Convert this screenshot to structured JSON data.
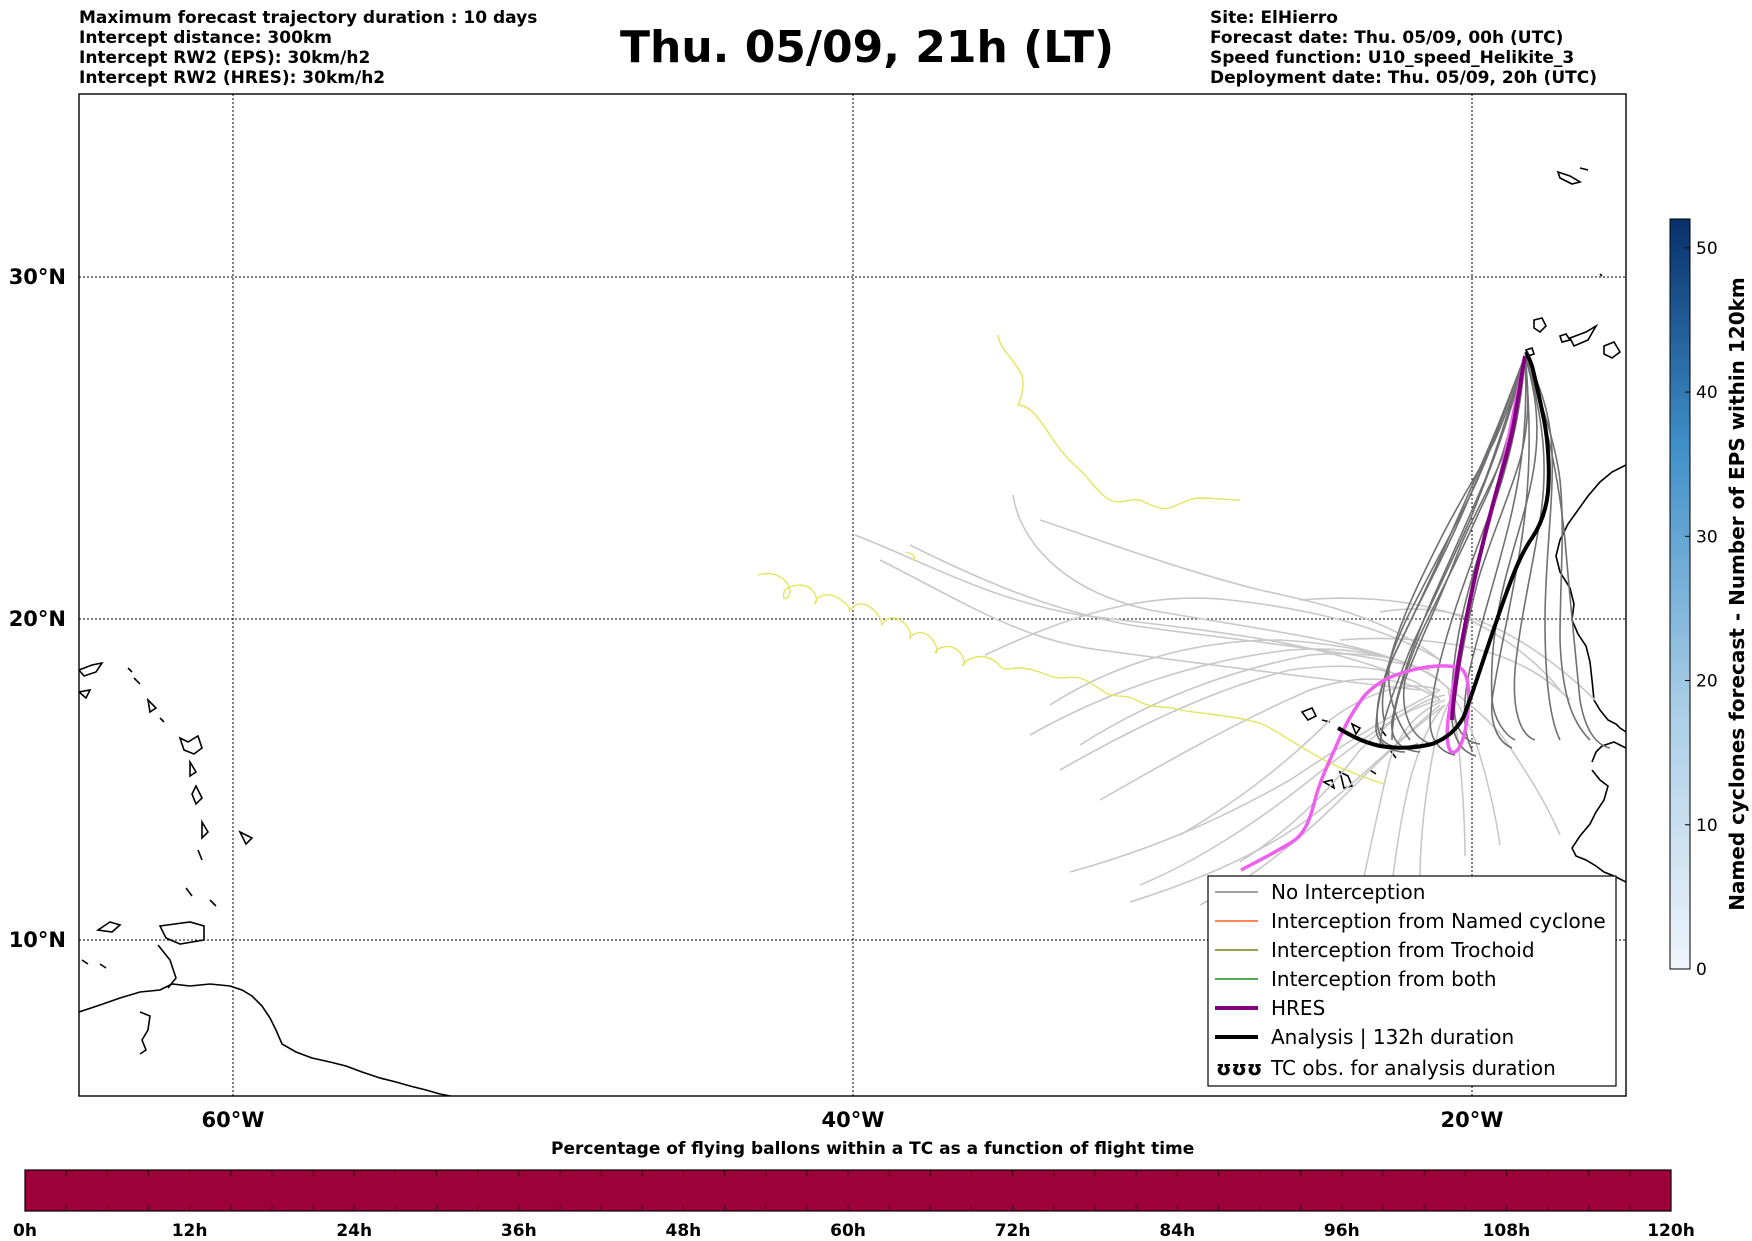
{
  "header": {
    "left_lines": [
      "Maximum forecast trajectory duration : 10 days",
      "Intercept distance: 300km",
      "Intercept RW2 (EPS):  30km/h2",
      "Intercept RW2 (HRES): 30km/h2"
    ],
    "title": "Thu. 05/09, 21h (LT)",
    "right_lines": [
      "Site: ElHierro",
      "Forecast date: Thu. 05/09, 00h (UTC)",
      "Speed function: U10_speed_Helikite_3",
      "Deployment date: Thu. 05/09, 20h (UTC)"
    ]
  },
  "map": {
    "lat_labels": [
      "30°N",
      "20°N",
      "10°N"
    ],
    "lon_labels": [
      "60°W",
      "40°W",
      "20°W"
    ],
    "grid": true
  },
  "colorbar": {
    "label": "Named cyclones forecast - Number of EPS within 120km",
    "ticks": [
      "0",
      "10",
      "20",
      "30",
      "40",
      "50"
    ],
    "range": [
      0,
      52
    ],
    "color_low": "#e8f0fa",
    "color_high": "#08306b"
  },
  "legend": {
    "items": [
      {
        "label": "No Interception",
        "color": "#808080",
        "style": "thin"
      },
      {
        "label": "Interception from Named cyclone",
        "color": "#ff5a1e",
        "style": "thin"
      },
      {
        "label": "Interception from Trochoid",
        "color": "#7f7f1e",
        "style": "thin"
      },
      {
        "label": "Interception from both",
        "color": "#1e8c1e",
        "style": "thin"
      },
      {
        "label": "HRES",
        "color": "#800080",
        "style": "thick"
      },
      {
        "label": "Analysis | 132h duration",
        "color": "#000000",
        "style": "thick"
      },
      {
        "label": "TC obs. for analysis duration",
        "color": "#000000",
        "style": "symbol"
      }
    ],
    "symbol": "ʊʊʊ"
  },
  "bottom_bar": {
    "title": "Percentage of flying ballons within a TC as a function of flight time",
    "ticks": [
      "0h",
      "12h",
      "24h",
      "36h",
      "48h",
      "60h",
      "72h",
      "84h",
      "96h",
      "108h",
      "120h"
    ],
    "color": "#9e003a"
  }
}
